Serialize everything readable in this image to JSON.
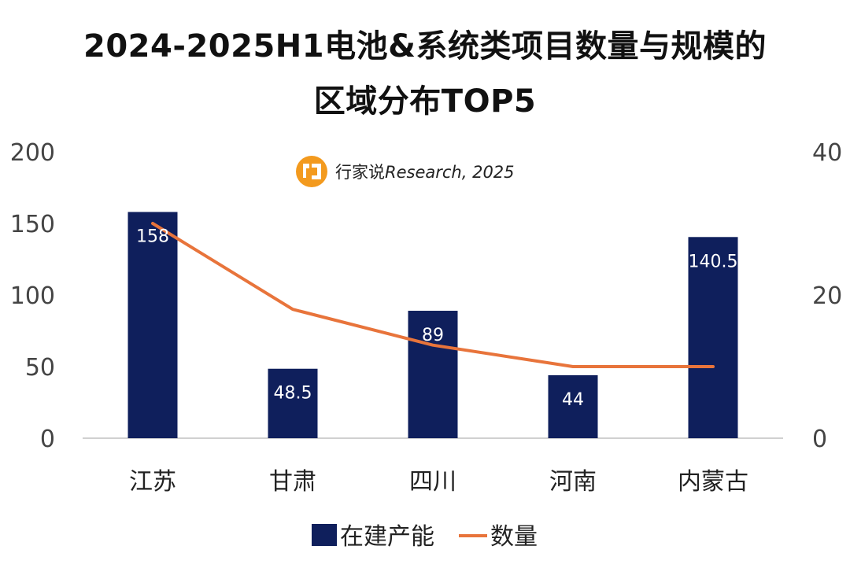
{
  "chart_data": {
    "type": "bar",
    "title_line1": "2024-2025H1电池&系统类项目数量与规模的",
    "title_line2": "区域分布TOP5",
    "categories": [
      "江苏",
      "甘肃",
      "四川",
      "河南",
      "内蒙古"
    ],
    "series": [
      {
        "name": "在建产能",
        "type": "bar",
        "axis": "left",
        "values": [
          158,
          48.5,
          89,
          44,
          140.5
        ],
        "labels": [
          "158",
          "48.5",
          "89",
          "44",
          "140.5"
        ]
      },
      {
        "name": "数量",
        "type": "line",
        "axis": "right",
        "values": [
          30,
          18,
          13,
          10,
          10
        ]
      }
    ],
    "y_left": {
      "min": 0,
      "max": 200,
      "ticks": [
        "0",
        "50",
        "100",
        "150",
        "200"
      ]
    },
    "y_right": {
      "min": 0,
      "max": 40,
      "ticks": [
        "0",
        "20",
        "40"
      ]
    },
    "grid": false,
    "legend": "bottom",
    "watermark": {
      "brand": "行家说",
      "suffix": "Research, 2025"
    },
    "colors": {
      "bar": "#0f1f5c",
      "line": "#e8743b",
      "logo": "#f39a1e",
      "axis": "#d0d0d0"
    }
  }
}
